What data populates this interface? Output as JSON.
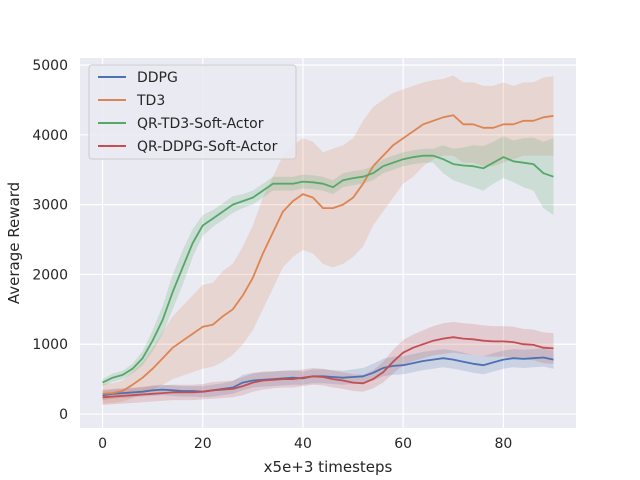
{
  "chart_data": {
    "type": "line",
    "xlabel": "x5e+3 timesteps",
    "ylabel": "Average Reward",
    "xlim": [
      -4.5,
      94.5
    ],
    "ylim": [
      -200,
      5100
    ],
    "xticks": [
      0,
      20,
      40,
      60,
      80
    ],
    "yticks": [
      0,
      1000,
      2000,
      3000,
      4000,
      5000
    ],
    "grid": true,
    "legend_position": "top-left",
    "x": [
      0,
      2,
      4,
      6,
      8,
      10,
      12,
      14,
      16,
      18,
      20,
      22,
      24,
      26,
      28,
      30,
      32,
      34,
      36,
      38,
      40,
      42,
      44,
      46,
      48,
      50,
      52,
      54,
      56,
      58,
      60,
      62,
      64,
      66,
      68,
      70,
      72,
      74,
      76,
      78,
      80,
      82,
      84,
      86,
      88,
      90
    ],
    "series": [
      {
        "name": "DDPG",
        "color": "#4c72b0",
        "values": [
          270,
          290,
          300,
          310,
          320,
          340,
          350,
          340,
          330,
          330,
          320,
          340,
          360,
          380,
          450,
          480,
          490,
          500,
          510,
          520,
          510,
          540,
          540,
          530,
          520,
          530,
          540,
          590,
          660,
          690,
          700,
          730,
          760,
          780,
          800,
          780,
          750,
          720,
          700,
          740,
          780,
          800,
          790,
          800,
          810,
          780
        ],
        "lower": [
          200,
          220,
          230,
          240,
          250,
          260,
          270,
          260,
          250,
          250,
          240,
          250,
          270,
          290,
          340,
          380,
          390,
          400,
          410,
          420,
          420,
          440,
          440,
          430,
          420,
          430,
          440,
          480,
          540,
          560,
          570,
          600,
          630,
          650,
          670,
          650,
          620,
          590,
          570,
          610,
          650,
          670,
          660,
          670,
          680,
          650
        ],
        "upper": [
          330,
          350,
          360,
          370,
          380,
          410,
          420,
          410,
          400,
          400,
          400,
          420,
          440,
          470,
          560,
          590,
          600,
          610,
          620,
          630,
          610,
          640,
          640,
          630,
          620,
          640,
          660,
          720,
          790,
          820,
          830,
          860,
          890,
          910,
          930,
          910,
          880,
          850,
          830,
          870,
          910,
          930,
          920,
          930,
          940,
          910
        ]
      },
      {
        "name": "TD3",
        "color": "#dd8452",
        "values": [
          290,
          300,
          330,
          420,
          520,
          650,
          800,
          950,
          1050,
          1150,
          1250,
          1280,
          1400,
          1500,
          1700,
          1950,
          2300,
          2600,
          2900,
          3050,
          3150,
          3100,
          2950,
          2950,
          3000,
          3100,
          3300,
          3550,
          3700,
          3850,
          3950,
          4050,
          4150,
          4200,
          4250,
          4280,
          4150,
          4150,
          4100,
          4100,
          4150,
          4150,
          4200,
          4200,
          4250,
          4270
        ],
        "lower": [
          150,
          160,
          180,
          230,
          290,
          350,
          420,
          500,
          550,
          600,
          650,
          680,
          750,
          850,
          1000,
          1200,
          1500,
          1800,
          2100,
          2250,
          2350,
          2300,
          2150,
          2100,
          2150,
          2250,
          2400,
          2700,
          2900,
          3100,
          3300,
          3400,
          3550,
          3650,
          3700,
          3700,
          3600,
          3600,
          3550,
          3550,
          3600,
          3650,
          3700,
          3700,
          3700,
          3700
        ],
        "upper": [
          430,
          440,
          480,
          610,
          750,
          950,
          1180,
          1400,
          1550,
          1700,
          1850,
          1880,
          2050,
          2150,
          2400,
          2700,
          3100,
          3400,
          3700,
          3850,
          3950,
          3900,
          3750,
          3800,
          3850,
          3950,
          4200,
          4400,
          4500,
          4600,
          4650,
          4700,
          4750,
          4780,
          4800,
          4850,
          4750,
          4750,
          4700,
          4700,
          4750,
          4700,
          4750,
          4750,
          4820,
          4840
        ]
      },
      {
        "name": "QR-TD3-Soft-Actor",
        "color": "#55a868",
        "values": [
          450,
          520,
          560,
          650,
          800,
          1050,
          1350,
          1750,
          2100,
          2450,
          2700,
          2800,
          2900,
          3000,
          3050,
          3100,
          3200,
          3300,
          3300,
          3300,
          3330,
          3320,
          3300,
          3250,
          3350,
          3380,
          3400,
          3450,
          3550,
          3600,
          3650,
          3680,
          3700,
          3700,
          3650,
          3580,
          3560,
          3550,
          3520,
          3600,
          3680,
          3620,
          3600,
          3580,
          3450,
          3400
        ],
        "lower": [
          400,
          460,
          500,
          580,
          700,
          900,
          1150,
          1500,
          1850,
          2250,
          2550,
          2680,
          2780,
          2880,
          2950,
          3000,
          3100,
          3200,
          3200,
          3200,
          3230,
          3220,
          3200,
          3150,
          3250,
          3280,
          3300,
          3350,
          3450,
          3500,
          3550,
          3580,
          3600,
          3600,
          3450,
          3350,
          3300,
          3250,
          3200,
          3300,
          3380,
          3320,
          3250,
          3200,
          2950,
          2850
        ],
        "upper": [
          500,
          580,
          620,
          720,
          900,
          1200,
          1550,
          2000,
          2350,
          2650,
          2850,
          2920,
          3020,
          3120,
          3150,
          3200,
          3300,
          3400,
          3400,
          3400,
          3430,
          3420,
          3400,
          3350,
          3450,
          3480,
          3500,
          3550,
          3650,
          3700,
          3750,
          3780,
          3800,
          3800,
          3850,
          3800,
          3820,
          3850,
          3840,
          3900,
          3980,
          3920,
          3950,
          3960,
          3900,
          3950
        ]
      },
      {
        "name": "QR-DDPG-Soft-Actor",
        "color": "#c44e52",
        "values": [
          240,
          250,
          260,
          270,
          280,
          290,
          300,
          310,
          310,
          310,
          320,
          340,
          350,
          360,
          400,
          450,
          480,
          490,
          500,
          500,
          520,
          540,
          530,
          500,
          480,
          450,
          440,
          500,
          600,
          750,
          880,
          950,
          1000,
          1050,
          1080,
          1100,
          1080,
          1070,
          1050,
          1040,
          1040,
          1030,
          1000,
          990,
          950,
          940
        ],
        "lower": [
          130,
          140,
          150,
          160,
          170,
          180,
          190,
          200,
          200,
          200,
          210,
          220,
          230,
          240,
          270,
          320,
          350,
          370,
          380,
          380,
          400,
          420,
          410,
          380,
          360,
          330,
          320,
          370,
          450,
          580,
          700,
          760,
          800,
          840,
          860,
          880,
          860,
          850,
          830,
          820,
          820,
          810,
          780,
          770,
          730,
          720
        ],
        "upper": [
          350,
          360,
          370,
          380,
          390,
          400,
          410,
          420,
          420,
          420,
          430,
          460,
          470,
          480,
          530,
          580,
          610,
          610,
          620,
          620,
          640,
          660,
          650,
          620,
          600,
          570,
          560,
          630,
          750,
          920,
          1060,
          1140,
          1200,
          1260,
          1300,
          1320,
          1300,
          1290,
          1270,
          1260,
          1260,
          1250,
          1220,
          1210,
          1170,
          1160
        ]
      }
    ]
  }
}
